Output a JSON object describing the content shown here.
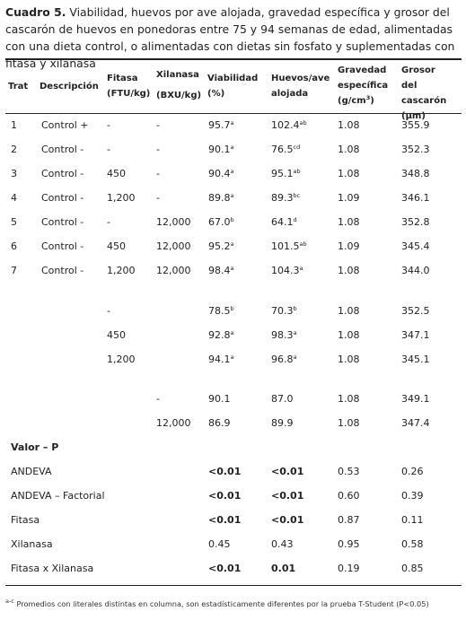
{
  "caption": {
    "label": "Cuadro 5.",
    "text": " Viabilidad, huevos por ave alojada, gravedad específica y grosor del cascarón de huevos en ponedoras entre 75 y 94 semanas de edad, alimentadas con una dieta control, o alimentadas con dietas sin fosfato y suplementadas con fitasa y xilanasa"
  },
  "headers": {
    "trat": "Trat",
    "descripcion": "Descripción",
    "fitasa": [
      "Fitasa",
      "(FTU/kg)"
    ],
    "xilanasa": [
      "Xilanasa",
      "(BXU/kg)"
    ],
    "viabilidad": [
      "Viabilidad",
      "(%)"
    ],
    "huevos": [
      "Huevos/ave",
      "alojada"
    ],
    "gravedad": [
      "Gravedad",
      "específica",
      "(g/cm",
      "3",
      ")"
    ],
    "grosor": [
      "Grosor del",
      "cascarón",
      "(µm)"
    ]
  },
  "rows": [
    {
      "trat": "1",
      "desc": "Control +",
      "fitasa": "-",
      "xilanasa": "-",
      "via": "95.7",
      "via_sup": "a",
      "hue": "102.4",
      "hue_sup": "ab",
      "grav": "1.08",
      "gros": "355.9"
    },
    {
      "trat": "2",
      "desc": "Control -",
      "fitasa": "-",
      "xilanasa": "-",
      "via": "90.1",
      "via_sup": "a",
      "hue": "76.5",
      "hue_sup": "cd",
      "grav": "1.08",
      "gros": "352.3"
    },
    {
      "trat": "3",
      "desc": "Control -",
      "fitasa": "450",
      "xilanasa": "-",
      "via": "90.4",
      "via_sup": "a",
      "hue": "95.1",
      "hue_sup": "ab",
      "grav": "1.08",
      "gros": "348.8"
    },
    {
      "trat": "4",
      "desc": "Control -",
      "fitasa": "1,200",
      "xilanasa": "-",
      "via": "89.8",
      "via_sup": "a",
      "hue": "89.3",
      "hue_sup": "bc",
      "grav": "1.09",
      "gros": "346.1"
    },
    {
      "trat": "5",
      "desc": "Control -",
      "fitasa": "-",
      "xilanasa": "12,000",
      "via": "67.0",
      "via_sup": "b",
      "hue": "64.1",
      "hue_sup": "d",
      "grav": "1.08",
      "gros": "352.8"
    },
    {
      "trat": "6",
      "desc": "Control -",
      "fitasa": "450",
      "xilanasa": "12,000",
      "via": "95.2",
      "via_sup": "a",
      "hue": "101.5",
      "hue_sup": "ab",
      "grav": "1.09",
      "gros": "345.4"
    },
    {
      "trat": "7",
      "desc": "Control -",
      "fitasa": "1,200",
      "xilanasa": "12,000",
      "via": "98.4",
      "via_sup": "a",
      "hue": "104.3",
      "hue_sup": "a",
      "grav": "1.08",
      "gros": "344.0"
    }
  ],
  "fitasa_means": [
    {
      "fitasa": "-",
      "via": "78.5",
      "via_sup": "b",
      "hue": "70.3",
      "hue_sup": "b",
      "grav": "1.08",
      "gros": "352.5"
    },
    {
      "fitasa": "450",
      "via": "92.8",
      "via_sup": "a",
      "hue": "98.3",
      "hue_sup": "a",
      "grav": "1.08",
      "gros": "347.1"
    },
    {
      "fitasa": "1,200",
      "via": "94.1",
      "via_sup": "a",
      "hue": "96.8",
      "hue_sup": "a",
      "grav": "1.08",
      "gros": "345.1"
    }
  ],
  "xilanasa_means": [
    {
      "xilanasa": "-",
      "via": "90.1",
      "hue": "87.0",
      "grav": "1.08",
      "gros": "349.1"
    },
    {
      "xilanasa": "12,000",
      "via": "86.9",
      "hue": "89.9",
      "grav": "1.08",
      "gros": "347.4"
    }
  ],
  "pvalues": {
    "title": "Valor – P",
    "rows": [
      {
        "label": "ANDEVA",
        "via": "<0.01",
        "hue": "<0.01",
        "grav": "0.53",
        "gros": "0.26",
        "via_bold": true,
        "hue_bold": true
      },
      {
        "label": "ANDEVA – Factorial",
        "via": "<0.01",
        "hue": "<0.01",
        "grav": "0.60",
        "gros": "0.39",
        "via_bold": true,
        "hue_bold": true
      },
      {
        "label": "Fitasa",
        "via": "<0.01",
        "hue": "<0.01",
        "grav": "0.87",
        "gros": "0.11",
        "via_bold": true,
        "hue_bold": true
      },
      {
        "label": "Xilanasa",
        "via": "0.45",
        "hue": "0.43",
        "grav": "0.95",
        "gros": "0.58",
        "via_bold": false,
        "hue_bold": false
      },
      {
        "label": "Fitasa x Xilanasa",
        "via": "<0.01",
        "hue": "0.01",
        "grav": "0.19",
        "gros": "0.85",
        "via_bold": true,
        "hue_bold": true
      }
    ]
  },
  "footnote": {
    "sup": "a-c",
    "text": " Promedios con literales distintas en columna, son estadísticamente diferentes por la prueba T-Student (P<0.05)"
  }
}
